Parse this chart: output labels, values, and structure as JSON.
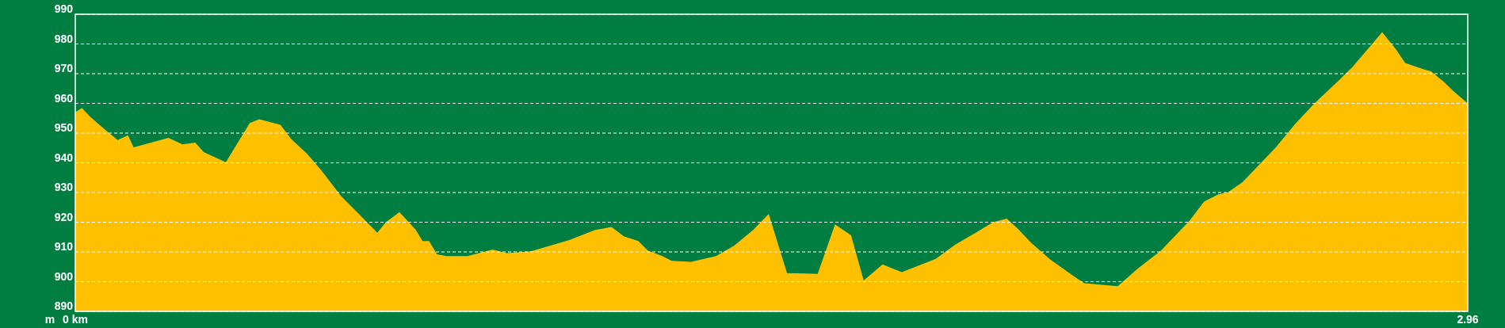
{
  "chart_data": {
    "type": "area",
    "ylabel": "m",
    "xlim": [
      0,
      2.96
    ],
    "xticks": [
      {
        "value": 0,
        "label": "0 km"
      },
      2.96
    ],
    "ylim": [
      890,
      990
    ],
    "yticks": [
      890,
      900,
      910,
      920,
      930,
      940,
      950,
      960,
      970,
      980,
      990
    ],
    "grid": "y",
    "line_style": "dashed",
    "series": [
      {
        "color": "#ffc000",
        "x": [
          0,
          0.014,
          0.031,
          0.061,
          0.09,
          0.112,
          0.124,
          0.198,
          0.228,
          0.255,
          0.273,
          0.32,
          0.371,
          0.391,
          0.436,
          0.459,
          0.493,
          0.524,
          0.565,
          0.599,
          0.642,
          0.66,
          0.689,
          0.724,
          0.738,
          0.752,
          0.769,
          0.789,
          0.834,
          0.887,
          0.917,
          0.968,
          1.05,
          1.105,
          1.14,
          1.166,
          1.197,
          1.217,
          1.248,
          1.268,
          1.309,
          1.362,
          1.4,
          1.441,
          1.474,
          1.513,
          1.578,
          1.615,
          1.649,
          1.676,
          1.716,
          1.757,
          1.829,
          1.87,
          1.914,
          1.951,
          1.98,
          2.002,
          2.032,
          2.073,
          2.124,
          2.145,
          2.216,
          2.257,
          2.308,
          2.369,
          2.399,
          2.43,
          2.45,
          2.481,
          2.552,
          2.593,
          2.634,
          2.685,
          2.715,
          2.756,
          2.778,
          2.807,
          2.827,
          2.868,
          2.882,
          2.909,
          2.93,
          2.96
        ],
        "values": [
          957,
          958.5,
          955.6,
          951.5,
          947.7,
          949.3,
          945.2,
          948.4,
          946.2,
          946.8,
          943.6,
          940.2,
          953.4,
          954.7,
          952.8,
          948,
          943,
          937.3,
          928.8,
          923.4,
          916.5,
          920,
          923.4,
          917.4,
          913.7,
          913.7,
          909.2,
          908.6,
          908.6,
          910.8,
          909.6,
          910.2,
          914,
          917.4,
          918.4,
          915.3,
          913.7,
          910.5,
          908.6,
          907,
          906.7,
          908.6,
          912.1,
          917.4,
          922.8,
          902.9,
          902.6,
          919.3,
          915.6,
          900.4,
          905.8,
          903.2,
          907.7,
          912.4,
          916.5,
          920,
          921.2,
          918.1,
          913.1,
          907.4,
          901.7,
          899.5,
          898.5,
          904.2,
          910.5,
          920.6,
          926.9,
          929.4,
          930.1,
          933.5,
          945.2,
          953.1,
          960,
          967.6,
          972.3,
          979.9,
          984,
          978.3,
          973.6,
          971.4,
          970.8,
          967.3,
          964.1,
          960
        ]
      }
    ]
  }
}
